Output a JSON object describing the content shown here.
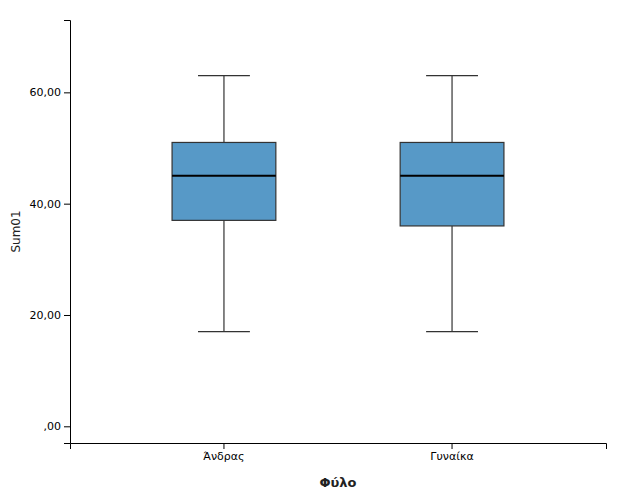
{
  "chart_data": {
    "type": "box",
    "categories": [
      "Άνδρας",
      "Γυναίκα"
    ],
    "boxes": [
      {
        "whislo": 17,
        "q1": 37,
        "med": 45,
        "q3": 51,
        "whishi": 63
      },
      {
        "whislo": 17,
        "q1": 36,
        "med": 45,
        "q3": 51,
        "whishi": 63
      }
    ],
    "xlabel": "Φύλο",
    "ylabel": "Sum01",
    "ylim": [
      -3,
      73
    ],
    "yticks": [
      {
        "value": 0,
        "label": ",00"
      },
      {
        "value": 20,
        "label": "20,00"
      },
      {
        "value": 40,
        "label": "40,00"
      },
      {
        "value": 60,
        "label": "60,00"
      }
    ],
    "grid": false
  }
}
